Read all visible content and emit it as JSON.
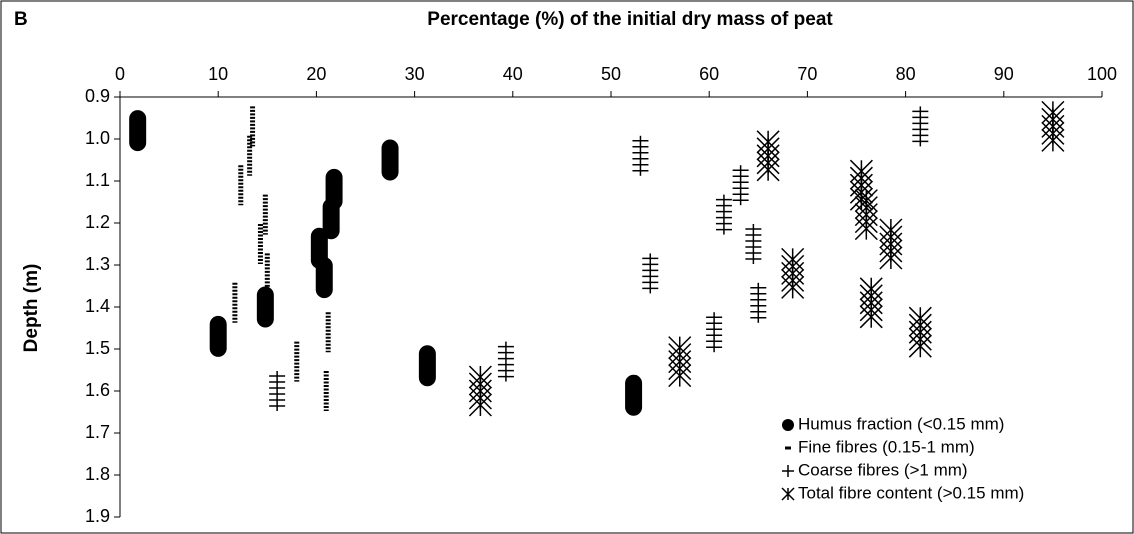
{
  "chart_data": {
    "type": "scatter",
    "panel_label": "B",
    "x_label": "Percentage (%) of the initial dry mass of peat",
    "y_label": "Depth (m)",
    "xlim": [
      0,
      100
    ],
    "xticks": [
      0,
      10,
      20,
      30,
      40,
      50,
      60,
      70,
      80,
      90,
      100
    ],
    "ylim": [
      0.9,
      1.9
    ],
    "yticks": [
      0.9,
      {
        "value": 1,
        "label": "1.0"
      },
      1.1,
      1.2,
      1.3,
      1.4,
      1.5,
      1.6,
      1.7,
      1.8,
      1.9
    ],
    "y_reversed": true,
    "x_axis_position": "top",
    "legend_position": "lower right",
    "series": [
      {
        "name": "Humus fraction (<0.15 mm)",
        "marker": "capsule",
        "color": "#000000",
        "x": [
          1.8,
          27.5,
          21.8,
          21.5,
          20.3,
          20.8,
          14.8,
          10,
          31.3,
          52.3
        ],
        "y": [
          0.98,
          1.05,
          1.12,
          1.19,
          1.26,
          1.33,
          1.4,
          1.47,
          1.54,
          1.61
        ]
      },
      {
        "name": "Fine fibres (0.15-1 mm)",
        "marker": "dash",
        "color": "#000000",
        "x": [
          13.5,
          13.2,
          12.3,
          14.8,
          14.3,
          15,
          11.7,
          21.2,
          18,
          21
        ],
        "y": [
          0.97,
          1.04,
          1.11,
          1.18,
          1.25,
          1.32,
          1.39,
          1.46,
          1.53,
          1.6
        ]
      },
      {
        "name": "Coarse fibres (>1 mm)",
        "marker": "plus",
        "color": "#000000",
        "x": [
          81.5,
          53,
          63.2,
          61.5,
          64.5,
          54,
          65,
          60.5,
          39.3,
          16
        ],
        "y": [
          0.97,
          1.04,
          1.11,
          1.18,
          1.25,
          1.32,
          1.39,
          1.46,
          1.53,
          1.6
        ]
      },
      {
        "name": "Total fibre content (>0.15 mm)",
        "marker": "asterisk",
        "color": "#000000",
        "x": [
          95,
          66,
          75.5,
          76,
          78.5,
          68.5,
          76.5,
          81.5,
          57,
          36.7
        ],
        "y": [
          0.97,
          1.04,
          1.11,
          1.18,
          1.25,
          1.32,
          1.39,
          1.46,
          1.53,
          1.6
        ]
      }
    ]
  }
}
